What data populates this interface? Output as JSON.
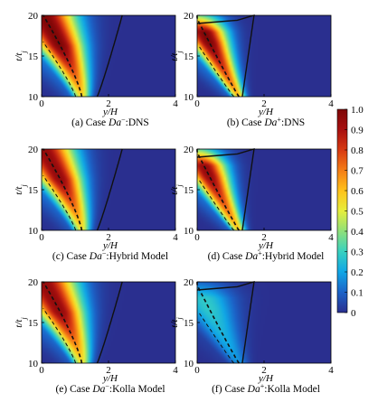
{
  "chart_data": {
    "type": "heatmap",
    "colorbar": {
      "min": 0,
      "max": 1,
      "ticks": [
        "0",
        "0.1",
        "0.2",
        "0.3",
        "0.4",
        "0.5",
        "0.6",
        "0.7",
        "0.8",
        "0.9",
        "1.0"
      ],
      "colormap": "jet",
      "colors": [
        "#2a2f8f",
        "#1c63c8",
        "#10a6e6",
        "#38d1c0",
        "#8fe07a",
        "#e6ee3c",
        "#ffc21a",
        "#f47d16",
        "#d83a12",
        "#a81010",
        "#7e0707"
      ]
    },
    "panels": [
      {
        "caption_prefix": "(a) Case ",
        "case_italic": "Da",
        "sup": "−",
        "caption_suffix": ":DNS",
        "xlabel": "y/H",
        "ylabel": "t/t",
        "ylabel_sub": "j",
        "xticks": [
          "0",
          "2",
          "4"
        ],
        "yticks": [
          "10",
          "15",
          "20"
        ],
        "xlim": [
          0,
          4
        ],
        "ylim": [
          10,
          20
        ],
        "field": {
          "case": "minus",
          "peak": 1.0,
          "width": 0.52,
          "outer_scale": 1.9
        }
      },
      {
        "caption_prefix": "(b) Case ",
        "case_italic": "Da",
        "sup": "+",
        "caption_suffix": ":DNS",
        "xlabel": "y/H",
        "ylabel": "t/t",
        "ylabel_sub": "j",
        "xticks": [
          "0",
          "2",
          "4"
        ],
        "yticks": [
          "10",
          "15",
          "20"
        ],
        "xlim": [
          0,
          4
        ],
        "ylim": [
          10,
          20
        ],
        "field": {
          "case": "plus",
          "peak": 1.0,
          "width": 0.42,
          "outer_scale": 1.35
        }
      },
      {
        "caption_prefix": "(c) Case ",
        "case_italic": "Da",
        "sup": "−",
        "caption_suffix": ":Hybrid Model",
        "xlabel": "y/H",
        "ylabel": "t/t",
        "ylabel_sub": "j",
        "xticks": [
          "0",
          "2",
          "4"
        ],
        "yticks": [
          "10",
          "15",
          "20"
        ],
        "xlim": [
          0,
          4
        ],
        "ylim": [
          10,
          20
        ],
        "field": {
          "case": "minus",
          "peak": 0.95,
          "width": 0.5,
          "outer_scale": 1.9
        }
      },
      {
        "caption_prefix": "(d) Case ",
        "case_italic": "Da",
        "sup": "+",
        "caption_suffix": ":Hybrid Model",
        "xlabel": "y/H",
        "ylabel": "t/t",
        "ylabel_sub": "j",
        "xticks": [
          "0",
          "2",
          "4"
        ],
        "yticks": [
          "10",
          "15",
          "20"
        ],
        "xlim": [
          0,
          4
        ],
        "ylim": [
          10,
          20
        ],
        "field": {
          "case": "plus",
          "peak": 0.95,
          "width": 0.42,
          "outer_scale": 1.35
        }
      },
      {
        "caption_prefix": "(e) Case ",
        "case_italic": "Da",
        "sup": "−",
        "caption_suffix": ":Kolla Model",
        "xlabel": "y/H",
        "ylabel": "t/t",
        "ylabel_sub": "j",
        "xticks": [
          "0",
          "2",
          "4"
        ],
        "yticks": [
          "10",
          "15",
          "20"
        ],
        "xlim": [
          0,
          4
        ],
        "ylim": [
          10,
          20
        ],
        "field": {
          "case": "minus",
          "peak": 0.95,
          "width": 0.54,
          "outer_scale": 1.9
        }
      },
      {
        "caption_prefix": "(f) Case ",
        "case_italic": "Da",
        "sup": "+",
        "caption_suffix": ":Kolla Model",
        "xlabel": "y/H",
        "ylabel": "t/t",
        "ylabel_sub": "j",
        "xticks": [
          "0",
          "2",
          "4"
        ],
        "yticks": [
          "10",
          "15",
          "20"
        ],
        "xlim": [
          0,
          4
        ],
        "ylim": [
          10,
          20
        ],
        "field": {
          "case": "plus",
          "peak": 0.28,
          "width": 0.55,
          "outer_scale": 1.35
        }
      }
    ]
  }
}
